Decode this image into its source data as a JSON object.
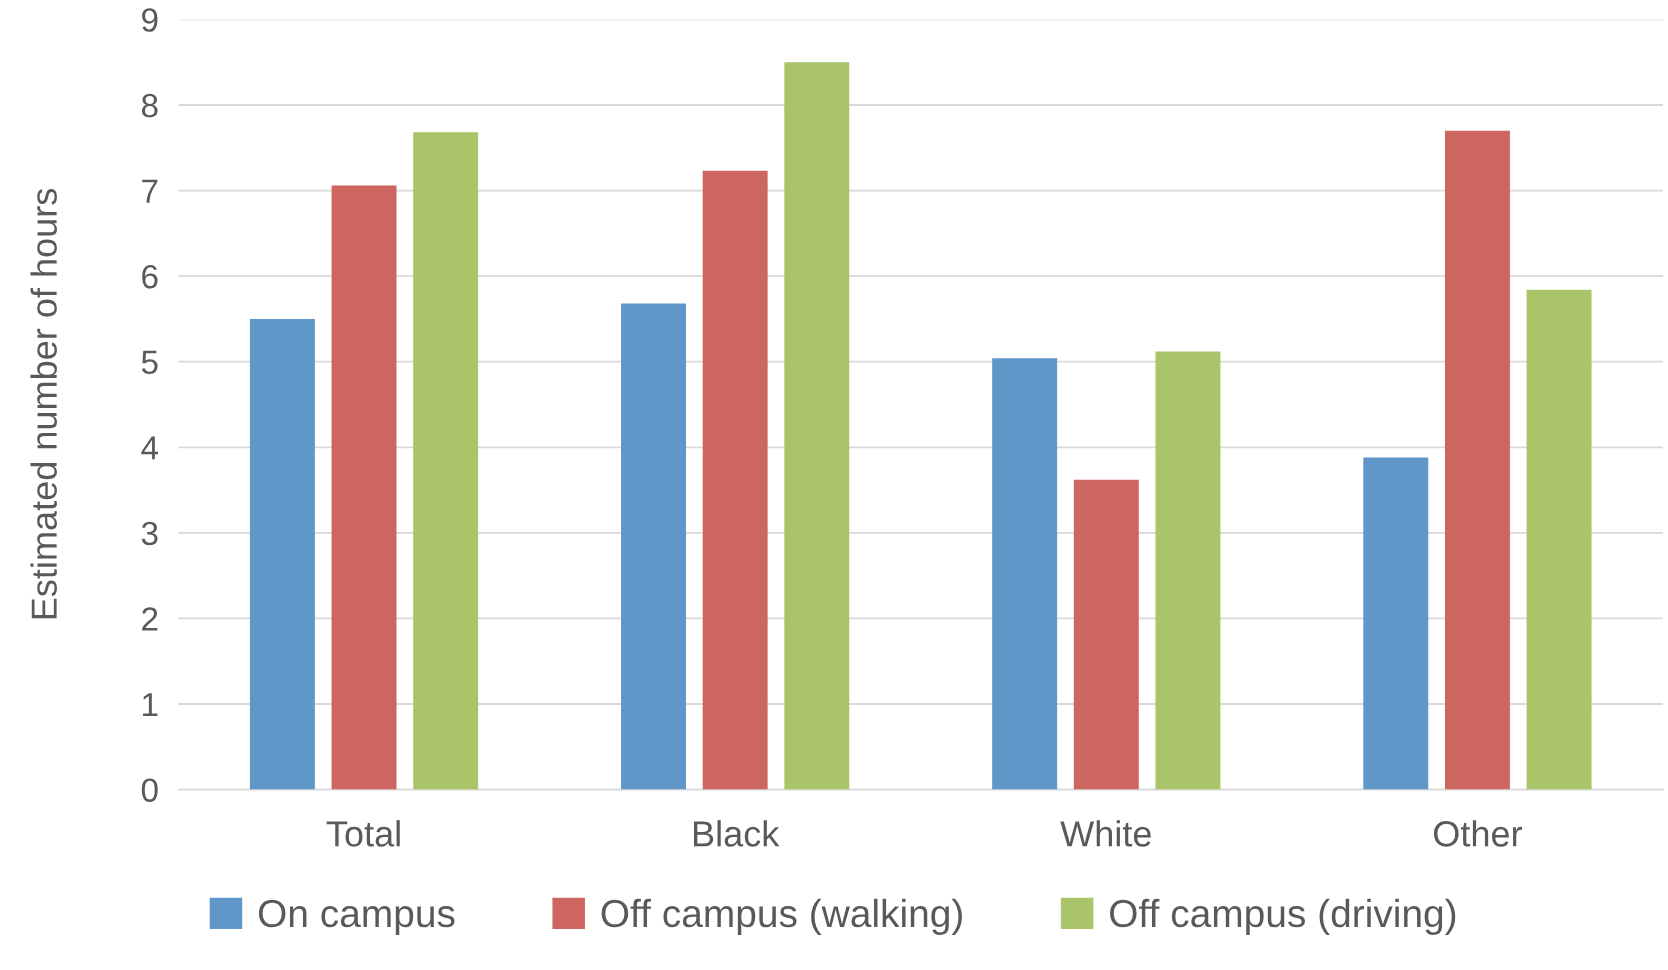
{
  "chart_data": {
    "type": "bar",
    "ylabel": "Estimated number of hours",
    "categories": [
      "Total",
      "Black",
      "White",
      "Other"
    ],
    "series": [
      {
        "name": "On campus",
        "color": "#6097c9",
        "values": [
          5.5,
          5.68,
          5.04,
          3.88
        ]
      },
      {
        "name": "Off campus (walking)",
        "color": "#cd6560",
        "values": [
          7.06,
          7.23,
          3.62,
          7.7
        ]
      },
      {
        "name": "Off campus (driving)",
        "color": "#aac46a",
        "values": [
          7.68,
          8.5,
          5.12,
          5.84
        ]
      }
    ],
    "ylim": [
      0,
      9
    ],
    "yticks": [
      0,
      1,
      2,
      3,
      4,
      5,
      6,
      7,
      8,
      9
    ],
    "grid": "y",
    "legend": "bottom"
  }
}
